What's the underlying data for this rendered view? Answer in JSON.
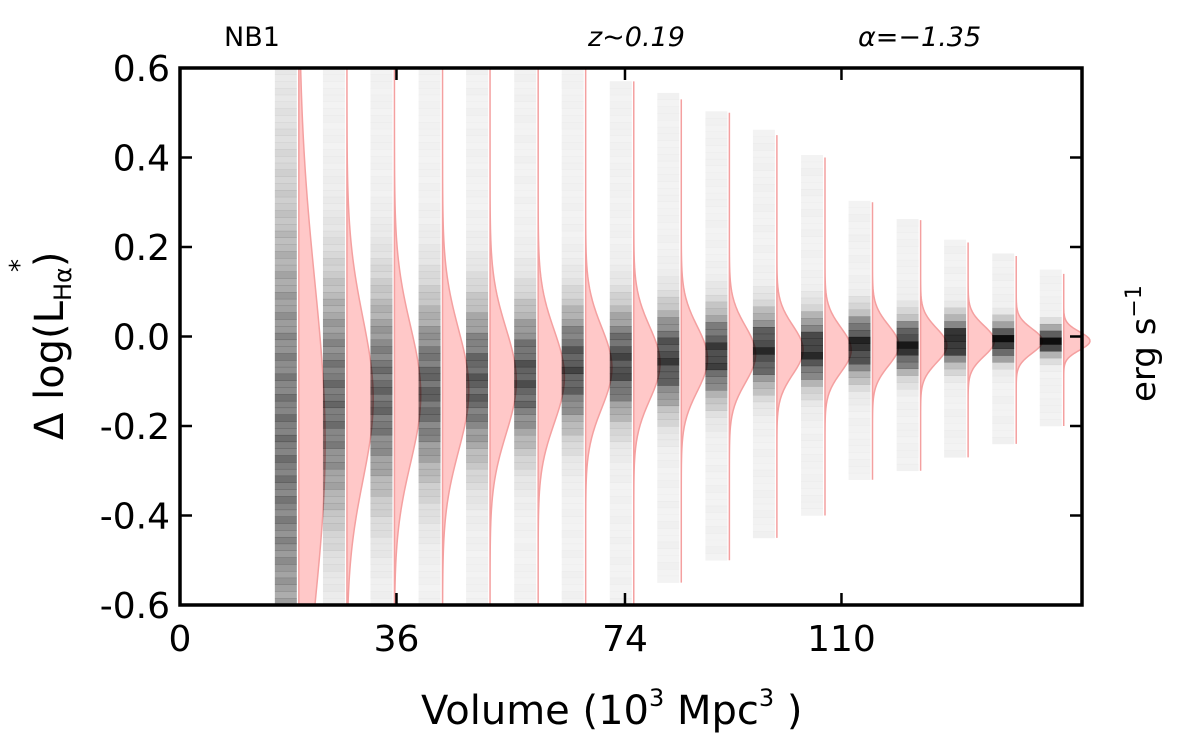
{
  "chart_data": {
    "type": "violin-histogram",
    "panel_label": "NB1",
    "redshift_label": "z∼0.19",
    "alpha_label": "α=−1.35",
    "xlabel": {
      "prefix": "Volume (10",
      "sup1": "3",
      "mid": "  Mpc",
      "sup2": "3",
      "suffix": " )"
    },
    "ylabel": {
      "prefix": "Δ log(L",
      "sub": "Hα",
      "suffix": ")",
      "sup": "*"
    },
    "right_label": {
      "text": "erg s",
      "sup": "−1"
    },
    "xlim": [
      0,
      150
    ],
    "ylim": [
      -0.6,
      0.6
    ],
    "x_ticks": [
      {
        "value": 0,
        "label": "0"
      },
      {
        "value": 36,
        "label": "36"
      },
      {
        "value": 74,
        "label": "74"
      },
      {
        "value": 110,
        "label": "110"
      }
    ],
    "y_ticks": [
      {
        "value": 0.6,
        "label": "0.6"
      },
      {
        "value": 0.4,
        "label": "0.4"
      },
      {
        "value": 0.2,
        "label": "0.2"
      },
      {
        "value": 0.0,
        "label": "0.0"
      },
      {
        "value": -0.2,
        "label": "-0.2"
      },
      {
        "value": -0.4,
        "label": "-0.4"
      },
      {
        "value": -0.6,
        "label": "-0.6"
      }
    ],
    "colors": {
      "violin_fill": "#ffc8c8",
      "violin_edge": "#f4a0a0",
      "histogram": "#000000",
      "axes": "#000000"
    },
    "columns": [
      {
        "x": 17.6,
        "center": -0.24,
        "width": 0.8,
        "top": 0.6,
        "bottom": -0.6
      },
      {
        "x": 25.6,
        "center": -0.14,
        "width": 0.4,
        "top": 0.6,
        "bottom": -0.6
      },
      {
        "x": 33.5,
        "center": -0.13,
        "width": 0.34,
        "top": 0.6,
        "bottom": -0.6
      },
      {
        "x": 41.5,
        "center": -0.12,
        "width": 0.3,
        "top": 0.6,
        "bottom": -0.6
      },
      {
        "x": 49.4,
        "center": -0.1,
        "width": 0.26,
        "top": 0.6,
        "bottom": -0.6
      },
      {
        "x": 57.4,
        "center": -0.09,
        "width": 0.23,
        "top": 0.6,
        "bottom": -0.6
      },
      {
        "x": 65.3,
        "center": -0.07,
        "width": 0.2,
        "top": 0.6,
        "bottom": -0.6
      },
      {
        "x": 73.3,
        "center": -0.06,
        "width": 0.18,
        "top": 0.57,
        "bottom": -0.6
      },
      {
        "x": 81.2,
        "center": -0.05,
        "width": 0.16,
        "top": 0.53,
        "bottom": -0.55
      },
      {
        "x": 89.2,
        "center": -0.04,
        "width": 0.14,
        "top": 0.5,
        "bottom": -0.5
      },
      {
        "x": 97.1,
        "center": -0.03,
        "width": 0.12,
        "top": 0.45,
        "bottom": -0.45
      },
      {
        "x": 105.1,
        "center": -0.03,
        "width": 0.11,
        "top": 0.4,
        "bottom": -0.4
      },
      {
        "x": 113.0,
        "center": -0.02,
        "width": 0.1,
        "top": 0.3,
        "bottom": -0.32
      },
      {
        "x": 121.0,
        "center": -0.02,
        "width": 0.085,
        "top": 0.26,
        "bottom": -0.3
      },
      {
        "x": 128.9,
        "center": -0.01,
        "width": 0.075,
        "top": 0.21,
        "bottom": -0.27
      },
      {
        "x": 136.9,
        "center": -0.01,
        "width": 0.06,
        "top": 0.18,
        "bottom": -0.24
      },
      {
        "x": 144.8,
        "center": -0.01,
        "width": 0.045,
        "top": 0.14,
        "bottom": -0.2
      }
    ]
  }
}
